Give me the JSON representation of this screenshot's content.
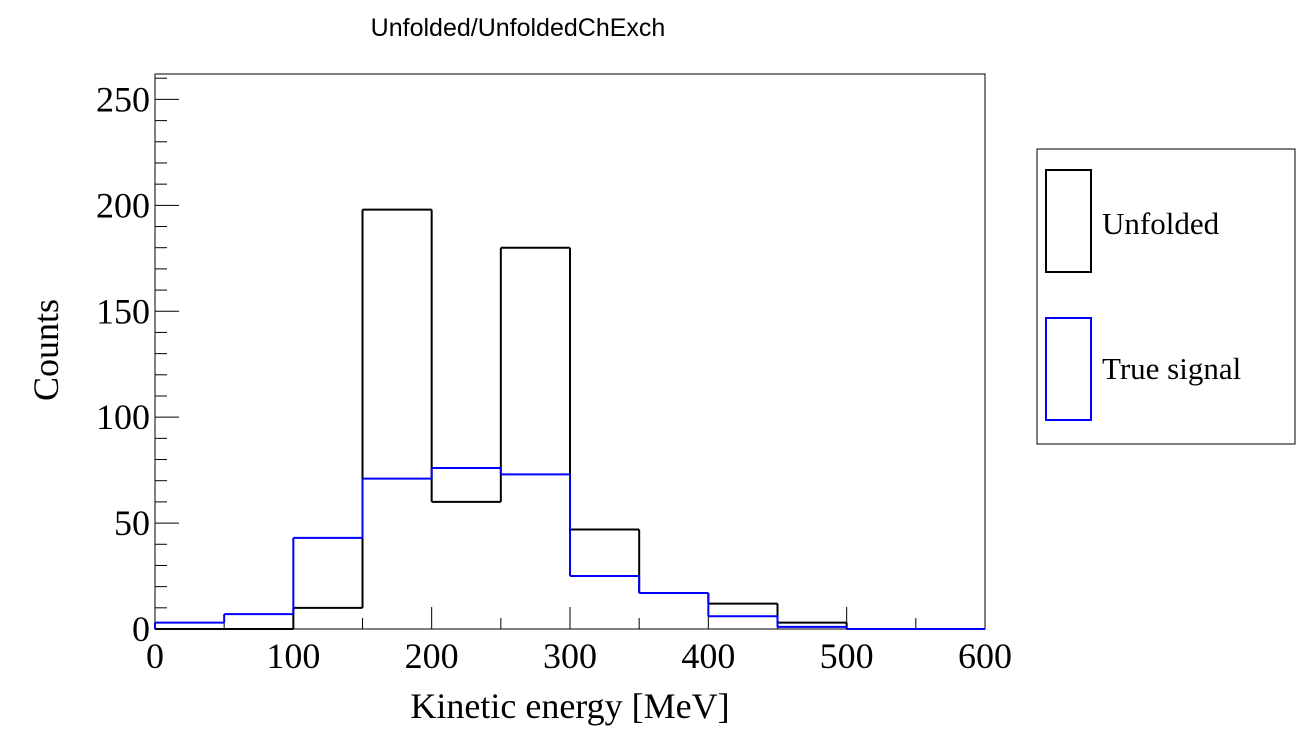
{
  "chart_data": {
    "type": "histogram",
    "title": "Unfolded/UnfoldedChExch",
    "xlabel": "Kinetic energy [MeV]",
    "ylabel": "Counts",
    "xlim": [
      0,
      600
    ],
    "ylim": [
      0,
      262
    ],
    "xticks": [
      0,
      100,
      200,
      300,
      400,
      500,
      600
    ],
    "yticks": [
      0,
      50,
      100,
      150,
      200,
      250
    ],
    "bin_edges": [
      0,
      50,
      100,
      150,
      200,
      250,
      300,
      350,
      400,
      450,
      500,
      550,
      600
    ],
    "series": [
      {
        "name": "Unfolded",
        "color": "#000000",
        "values": [
          0,
          0,
          10,
          198,
          60,
          180,
          47,
          17,
          12,
          3,
          0,
          0
        ]
      },
      {
        "name": "True signal",
        "color": "#0000ff",
        "values": [
          3,
          7,
          43,
          71,
          76,
          73,
          25,
          17,
          6,
          1,
          0,
          0
        ]
      }
    ],
    "legend_position": "right",
    "grid": false
  }
}
